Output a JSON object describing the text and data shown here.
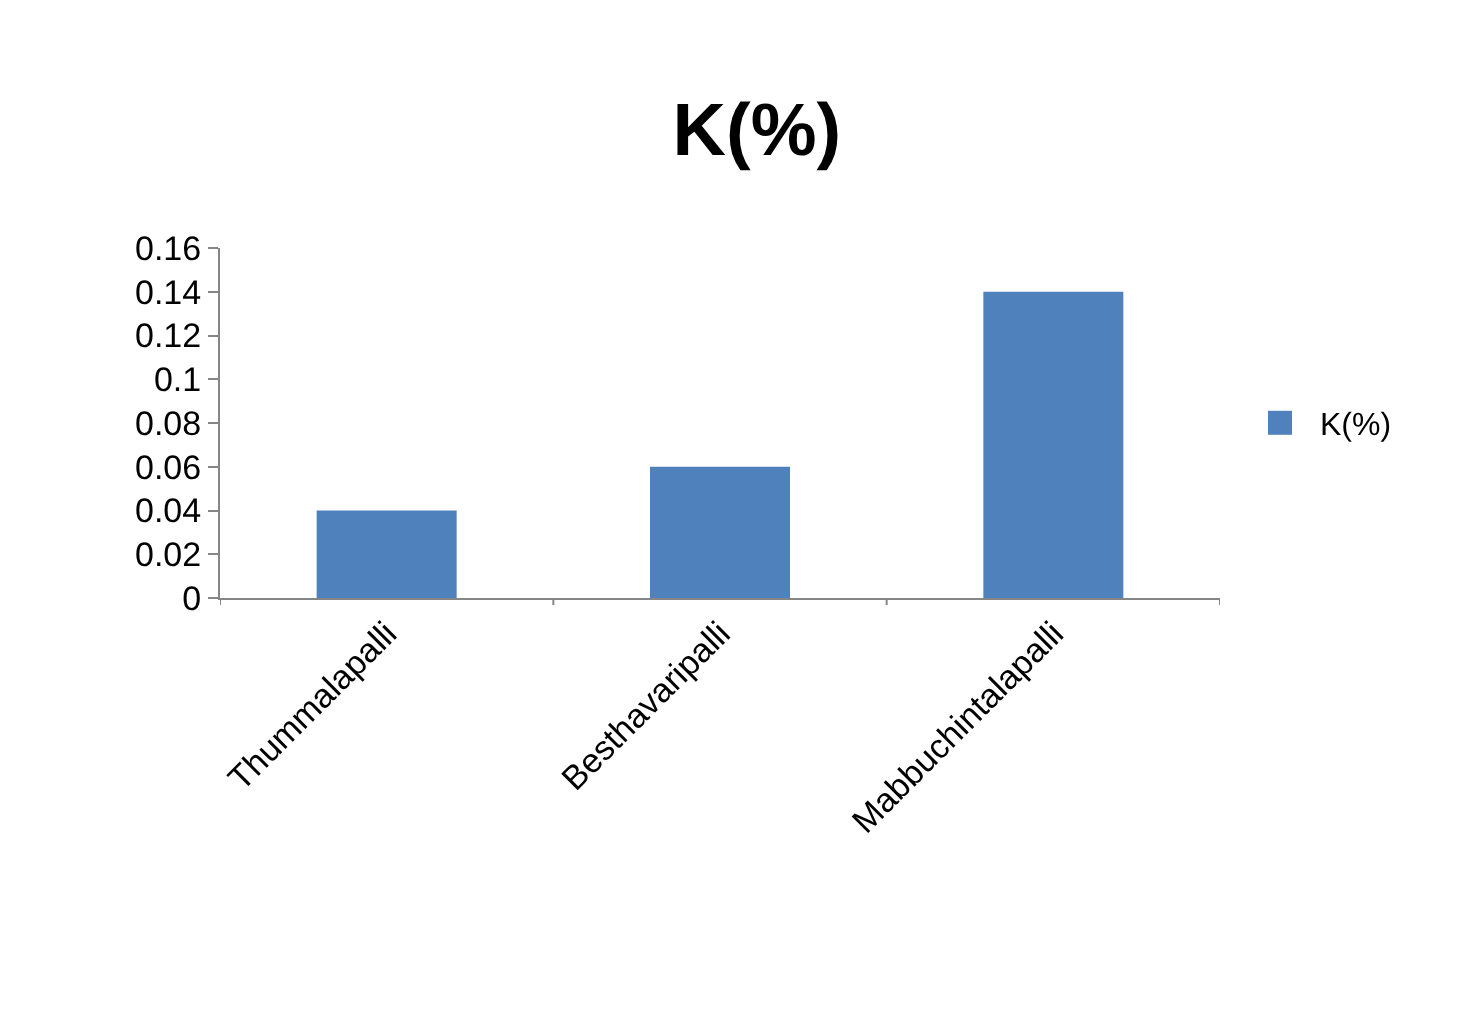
{
  "chart_data": {
    "type": "bar",
    "title": "K(%)",
    "categories": [
      "Thummalapalli",
      "Besthavaripalli",
      "Mabbuchintalapalli"
    ],
    "series": [
      {
        "name": "K(%)",
        "color": "#4f81bd",
        "values": [
          0.04,
          0.06,
          0.14
        ]
      }
    ],
    "ylim": [
      0,
      0.16
    ],
    "yticks": [
      0,
      0.02,
      0.04,
      0.06,
      0.08,
      {
        "value": 0.1,
        "label": "0.1"
      },
      0.12,
      0.14,
      0.16
    ],
    "grid": false,
    "legend": "right"
  }
}
